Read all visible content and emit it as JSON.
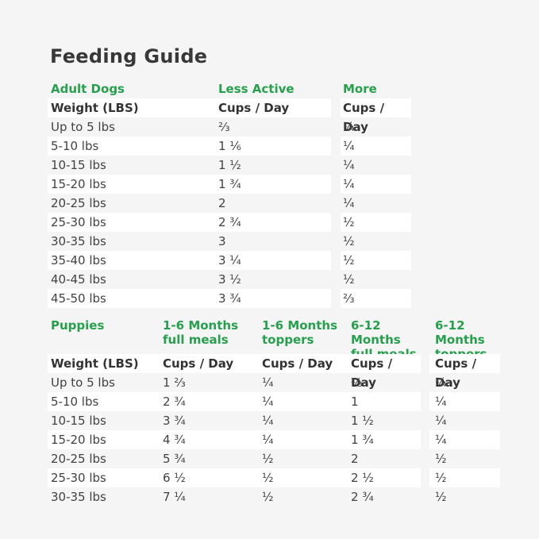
{
  "page": {
    "title": "Feeding Guide",
    "background_color": "#f5f5f5",
    "stripe_color": "#ffffff",
    "accent_green": "#27a04d",
    "text_dark": "#383838"
  },
  "adult_table": {
    "section_label": "Adult Dogs",
    "less_active_header": "Less Active",
    "more_active_header": "More Active",
    "weight_header": "Weight (LBS)",
    "unit_header": "Cups / Day",
    "rows": [
      {
        "weight": "Up to 5 lbs",
        "less_active": "⅔",
        "more_active": "¼"
      },
      {
        "weight": "5-10 lbs",
        "less_active": "1 ⅙",
        "more_active": "¼"
      },
      {
        "weight": "10-15 lbs",
        "less_active": "1 ½",
        "more_active": "¼"
      },
      {
        "weight": "15-20 lbs",
        "less_active": "1 ¾",
        "more_active": "¼"
      },
      {
        "weight": "20-25 lbs",
        "less_active": "2",
        "more_active": "¼"
      },
      {
        "weight": "25-30 lbs",
        "less_active": "2 ¾",
        "more_active": "½"
      },
      {
        "weight": "30-35 lbs",
        "less_active": "3",
        "more_active": "½"
      },
      {
        "weight": "35-40 lbs",
        "less_active": "3 ¼",
        "more_active": "½"
      },
      {
        "weight": "40-45 lbs",
        "less_active": "3 ½",
        "more_active": "½"
      },
      {
        "weight": "45-50 lbs",
        "less_active": "3 ¾",
        "more_active": "⅔"
      }
    ]
  },
  "puppy_table": {
    "section_label": "Puppies",
    "col_headers": [
      {
        "line1": "1-6 Months",
        "line2": "full meals"
      },
      {
        "line1": "1-6 Months",
        "line2": "toppers"
      },
      {
        "line1": "6-12 Months",
        "line2": "full meals"
      },
      {
        "line1": "6-12 Months",
        "line2": "toppers"
      }
    ],
    "weight_header": "Weight (LBS)",
    "unit_header": "Cups / Day",
    "rows": [
      {
        "weight": "Up to 5 lbs",
        "meals_1_6": "1 ⅔",
        "toppers_1_6": "¼",
        "meals_6_12": "⅔",
        "toppers_6_12": "¼"
      },
      {
        "weight": "5-10 lbs",
        "meals_1_6": "2 ¾",
        "toppers_1_6": "¼",
        "meals_6_12": "1",
        "toppers_6_12": "¼"
      },
      {
        "weight": "10-15 lbs",
        "meals_1_6": "3 ¾",
        "toppers_1_6": "¼",
        "meals_6_12": "1 ½",
        "toppers_6_12": "¼"
      },
      {
        "weight": "15-20 lbs",
        "meals_1_6": "4 ¾",
        "toppers_1_6": "¼",
        "meals_6_12": "1 ¾",
        "toppers_6_12": "¼"
      },
      {
        "weight": "20-25 lbs",
        "meals_1_6": "5 ¾",
        "toppers_1_6": "½",
        "meals_6_12": "2",
        "toppers_6_12": "½"
      },
      {
        "weight": "25-30 lbs",
        "meals_1_6": "6 ½",
        "toppers_1_6": "½",
        "meals_6_12": "2 ½",
        "toppers_6_12": "½"
      },
      {
        "weight": "30-35 lbs",
        "meals_1_6": "7 ¼",
        "toppers_1_6": "½",
        "meals_6_12": "2 ¾",
        "toppers_6_12": "½"
      }
    ]
  }
}
